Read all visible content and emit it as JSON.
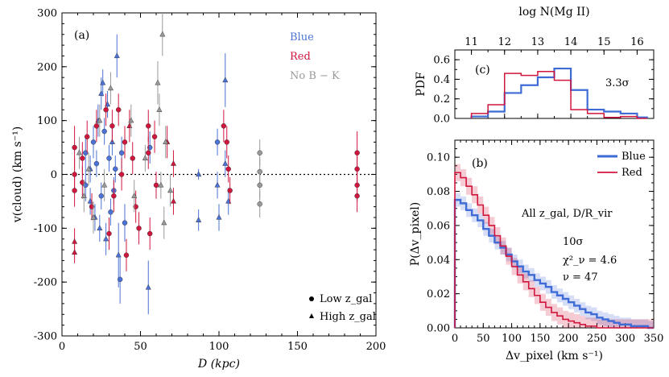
{
  "chart_data": [
    {
      "id": "a",
      "type": "scatter",
      "panel_label": "(a)",
      "xlabel": "D (kpc)",
      "ylabel": "v(cloud) (km s⁻¹)",
      "xlim": [
        0,
        200
      ],
      "ylim": [
        -300,
        300
      ],
      "xticks": [
        0,
        50,
        100,
        150,
        200
      ],
      "yticks": [
        -300,
        -200,
        -100,
        0,
        100,
        200,
        300
      ],
      "zero_line": true,
      "legend_colors": [
        {
          "name": "Blue",
          "color": "#4b72d6"
        },
        {
          "name": "Red",
          "color": "#d0163d"
        },
        {
          "name": "No B − K",
          "color": "#999999"
        }
      ],
      "legend_markers": [
        {
          "marker": "circle",
          "label": "Low z_gal"
        },
        {
          "marker": "triangle",
          "label": "High z_gal"
        }
      ],
      "series": [
        {
          "name": "Blue",
          "color": "#4b72d6",
          "points": [
            {
              "x": 15,
              "y": -20,
              "err": 30,
              "m": "circle"
            },
            {
              "x": 15,
              "y": 40,
              "err": 30,
              "m": "circle"
            },
            {
              "x": 18,
              "y": 10,
              "err": 25,
              "m": "triangle"
            },
            {
              "x": 18,
              "y": -50,
              "err": 25,
              "m": "triangle"
            },
            {
              "x": 20,
              "y": 60,
              "err": 30,
              "m": "circle"
            },
            {
              "x": 21,
              "y": -80,
              "err": 25,
              "m": "triangle"
            },
            {
              "x": 22,
              "y": 20,
              "err": 25,
              "m": "circle"
            },
            {
              "x": 23,
              "y": 100,
              "err": 30,
              "m": "triangle"
            },
            {
              "x": 24,
              "y": -100,
              "err": 25,
              "m": "triangle"
            },
            {
              "x": 25,
              "y": 150,
              "err": 30,
              "m": "triangle"
            },
            {
              "x": 25,
              "y": -40,
              "err": 25,
              "m": "circle"
            },
            {
              "x": 26,
              "y": 170,
              "err": 25,
              "m": "triangle"
            },
            {
              "x": 27,
              "y": 80,
              "err": 25,
              "m": "circle"
            },
            {
              "x": 28,
              "y": -120,
              "err": 30,
              "m": "triangle"
            },
            {
              "x": 29,
              "y": 130,
              "err": 25,
              "m": "triangle"
            },
            {
              "x": 30,
              "y": 30,
              "err": 25,
              "m": "circle"
            },
            {
              "x": 31,
              "y": -70,
              "err": 25,
              "m": "circle"
            },
            {
              "x": 32,
              "y": 60,
              "err": 25,
              "m": "triangle"
            },
            {
              "x": 33,
              "y": -30,
              "err": 25,
              "m": "circle"
            },
            {
              "x": 34,
              "y": 10,
              "err": 25,
              "m": "circle"
            },
            {
              "x": 35,
              "y": 220,
              "err": 40,
              "m": "triangle"
            },
            {
              "x": 36,
              "y": -150,
              "err": 60,
              "m": "triangle"
            },
            {
              "x": 37,
              "y": -195,
              "err": 45,
              "m": "circle"
            },
            {
              "x": 38,
              "y": 40,
              "err": 30,
              "m": "circle"
            },
            {
              "x": 40,
              "y": -90,
              "err": 35,
              "m": "circle"
            },
            {
              "x": 55,
              "y": -210,
              "err": 50,
              "m": "triangle"
            },
            {
              "x": 56,
              "y": 50,
              "err": 30,
              "m": "circle"
            },
            {
              "x": 87,
              "y": 0,
              "err": 10,
              "m": "triangle"
            },
            {
              "x": 87,
              "y": -85,
              "err": 20,
              "m": "triangle"
            },
            {
              "x": 99,
              "y": 60,
              "err": 25,
              "m": "circle"
            },
            {
              "x": 99,
              "y": -20,
              "err": 25,
              "m": "triangle"
            },
            {
              "x": 100,
              "y": -80,
              "err": 25,
              "m": "triangle"
            },
            {
              "x": 104,
              "y": 175,
              "err": 50,
              "m": "triangle"
            },
            {
              "x": 104,
              "y": 20,
              "err": 25,
              "m": "triangle"
            },
            {
              "x": 106,
              "y": -50,
              "err": 25,
              "m": "triangle"
            }
          ]
        },
        {
          "name": "Red",
          "color": "#d0163d",
          "points": [
            {
              "x": 8,
              "y": -125,
              "err": 25,
              "m": "triangle"
            },
            {
              "x": 8,
              "y": -145,
              "err": 20,
              "m": "triangle"
            },
            {
              "x": 8,
              "y": 50,
              "err": 40,
              "m": "circle"
            },
            {
              "x": 8,
              "y": 0,
              "err": 30,
              "m": "circle"
            },
            {
              "x": 8,
              "y": -30,
              "err": 30,
              "m": "circle"
            },
            {
              "x": 13,
              "y": 30,
              "err": 30,
              "m": "circle"
            },
            {
              "x": 13,
              "y": -15,
              "err": 30,
              "m": "circle"
            },
            {
              "x": 16,
              "y": 70,
              "err": 30,
              "m": "circle"
            },
            {
              "x": 19,
              "y": -60,
              "err": 25,
              "m": "circle"
            },
            {
              "x": 22,
              "y": 90,
              "err": 30,
              "m": "circle"
            },
            {
              "x": 28,
              "y": 120,
              "err": 30,
              "m": "circle"
            },
            {
              "x": 30,
              "y": -110,
              "err": 30,
              "m": "circle"
            },
            {
              "x": 32,
              "y": 90,
              "err": 30,
              "m": "circle"
            },
            {
              "x": 33,
              "y": -40,
              "err": 30,
              "m": "circle"
            },
            {
              "x": 36,
              "y": 120,
              "err": 30,
              "m": "circle"
            },
            {
              "x": 38,
              "y": 0,
              "err": 30,
              "m": "circle"
            },
            {
              "x": 40,
              "y": 60,
              "err": 30,
              "m": "circle"
            },
            {
              "x": 41,
              "y": -150,
              "err": 30,
              "m": "circle"
            },
            {
              "x": 43,
              "y": 90,
              "err": 30,
              "m": "triangle"
            },
            {
              "x": 45,
              "y": 30,
              "err": 30,
              "m": "circle"
            },
            {
              "x": 47,
              "y": -60,
              "err": 30,
              "m": "circle"
            },
            {
              "x": 49,
              "y": -100,
              "err": 30,
              "m": "circle"
            },
            {
              "x": 55,
              "y": 90,
              "err": 30,
              "m": "circle"
            },
            {
              "x": 55,
              "y": 40,
              "err": 30,
              "m": "circle"
            },
            {
              "x": 56,
              "y": -110,
              "err": 30,
              "m": "circle"
            },
            {
              "x": 59,
              "y": 70,
              "err": 30,
              "m": "circle"
            },
            {
              "x": 60,
              "y": -20,
              "err": 25,
              "m": "circle"
            },
            {
              "x": 67,
              "y": 60,
              "err": 30,
              "m": "triangle"
            },
            {
              "x": 71,
              "y": 20,
              "err": 25,
              "m": "triangle"
            },
            {
              "x": 71,
              "y": -50,
              "err": 25,
              "m": "triangle"
            },
            {
              "x": 103,
              "y": 90,
              "err": 30,
              "m": "circle"
            },
            {
              "x": 105,
              "y": 60,
              "err": 30,
              "m": "circle"
            },
            {
              "x": 106,
              "y": 10,
              "err": 25,
              "m": "circle"
            },
            {
              "x": 107,
              "y": -30,
              "err": 25,
              "m": "circle"
            },
            {
              "x": 188,
              "y": 40,
              "err": 40,
              "m": "circle"
            },
            {
              "x": 188,
              "y": 10,
              "err": 30,
              "m": "circle"
            },
            {
              "x": 188,
              "y": -20,
              "err": 30,
              "m": "circle"
            },
            {
              "x": 188,
              "y": -40,
              "err": 30,
              "m": "circle"
            }
          ]
        },
        {
          "name": "No B − K",
          "color": "#999999",
          "points": [
            {
              "x": 11,
              "y": 40,
              "err": 30,
              "m": "triangle"
            },
            {
              "x": 14,
              "y": -40,
              "err": 30,
              "m": "triangle"
            },
            {
              "x": 17,
              "y": 10,
              "err": 30,
              "m": "triangle"
            },
            {
              "x": 20,
              "y": -80,
              "err": 30,
              "m": "triangle"
            },
            {
              "x": 24,
              "y": 100,
              "err": 30,
              "m": "triangle"
            },
            {
              "x": 27,
              "y": -20,
              "err": 30,
              "m": "triangle"
            },
            {
              "x": 31,
              "y": 160,
              "err": 30,
              "m": "triangle"
            },
            {
              "x": 44,
              "y": 100,
              "err": 30,
              "m": "triangle"
            },
            {
              "x": 46,
              "y": -40,
              "err": 30,
              "m": "triangle"
            },
            {
              "x": 53,
              "y": 30,
              "err": 25,
              "m": "triangle"
            },
            {
              "x": 61,
              "y": 170,
              "err": 40,
              "m": "triangle"
            },
            {
              "x": 62,
              "y": 120,
              "err": 30,
              "m": "triangle"
            },
            {
              "x": 63,
              "y": -20,
              "err": 25,
              "m": "triangle"
            },
            {
              "x": 64,
              "y": 260,
              "err": 40,
              "m": "triangle"
            },
            {
              "x": 65,
              "y": -90,
              "err": 30,
              "m": "triangle"
            },
            {
              "x": 66,
              "y": 60,
              "err": 30,
              "m": "triangle"
            },
            {
              "x": 69,
              "y": -30,
              "err": 30,
              "m": "triangle"
            },
            {
              "x": 126,
              "y": 40,
              "err": 25,
              "m": "circle"
            },
            {
              "x": 126,
              "y": 5,
              "err": 25,
              "m": "circle"
            },
            {
              "x": 126,
              "y": -20,
              "err": 25,
              "m": "circle"
            },
            {
              "x": 126,
              "y": -55,
              "err": 25,
              "m": "circle"
            }
          ]
        }
      ]
    },
    {
      "id": "c",
      "type": "step",
      "panel_label": "(c)",
      "xlabel": "log N(Mg II)",
      "ylabel": "PDF",
      "xlim": [
        10.5,
        16.5
      ],
      "ylim": [
        0,
        0.7
      ],
      "xticks": [
        11,
        12,
        13,
        14,
        15,
        16
      ],
      "yticks": [
        0.0,
        0.2,
        0.4,
        0.6
      ],
      "annotation": "3.3σ",
      "bin_edges": [
        11.0,
        11.5,
        12.0,
        12.5,
        13.0,
        13.5,
        14.0,
        14.5,
        15.0,
        15.5,
        16.0,
        16.3
      ],
      "series": [
        {
          "name": "Blue",
          "color": "#3f6bd6",
          "values": [
            0.02,
            0.07,
            0.26,
            0.34,
            0.42,
            0.51,
            0.29,
            0.09,
            0.07,
            0.05,
            0.01
          ]
        },
        {
          "name": "Red",
          "color": "#d0163d",
          "values": [
            0.05,
            0.14,
            0.46,
            0.44,
            0.48,
            0.39,
            0.09,
            0.05,
            0.01,
            0.02,
            0.0
          ]
        }
      ]
    },
    {
      "id": "b",
      "type": "step",
      "panel_label": "(b)",
      "xlabel": "Δv_pixel (km s⁻¹)",
      "ylabel": "P(Δv_pixel)",
      "xlim": [
        0,
        350
      ],
      "ylim": [
        0,
        0.11
      ],
      "xticks": [
        0,
        50,
        100,
        150,
        200,
        250,
        300,
        350
      ],
      "yticks": [
        0.0,
        0.02,
        0.04,
        0.06,
        0.08,
        0.1
      ],
      "annotations": [
        "All z_gal, D/R_vir",
        "10σ",
        "χ²_ν = 4.6",
        "ν = 47"
      ],
      "bin_edges": [
        0,
        10,
        20,
        30,
        40,
        50,
        60,
        70,
        80,
        90,
        100,
        110,
        120,
        130,
        140,
        150,
        160,
        170,
        180,
        190,
        200,
        210,
        220,
        230,
        240,
        250,
        260,
        270,
        280,
        290,
        300,
        310,
        320,
        330,
        340,
        350
      ],
      "series": [
        {
          "name": "Blue",
          "color": "#3f6bd6",
          "band": 0.004,
          "values": [
            0.075,
            0.073,
            0.069,
            0.066,
            0.063,
            0.058,
            0.054,
            0.05,
            0.047,
            0.043,
            0.039,
            0.036,
            0.033,
            0.031,
            0.028,
            0.026,
            0.024,
            0.021,
            0.019,
            0.017,
            0.015,
            0.013,
            0.011,
            0.009,
            0.008,
            0.006,
            0.005,
            0.004,
            0.003,
            0.002,
            0.002,
            0.001,
            0.001,
            0.001,
            0.0
          ]
        },
        {
          "name": "Red",
          "color": "#d0163d",
          "band": 0.005,
          "values": [
            0.091,
            0.088,
            0.083,
            0.078,
            0.072,
            0.066,
            0.06,
            0.054,
            0.048,
            0.042,
            0.036,
            0.031,
            0.027,
            0.023,
            0.019,
            0.015,
            0.012,
            0.009,
            0.007,
            0.005,
            0.004,
            0.003,
            0.002,
            0.001,
            0.001,
            0.0,
            0.0,
            0.0,
            0.0,
            0.0,
            0.0,
            0.0,
            0.0,
            0.0,
            0.0
          ]
        }
      ]
    }
  ]
}
